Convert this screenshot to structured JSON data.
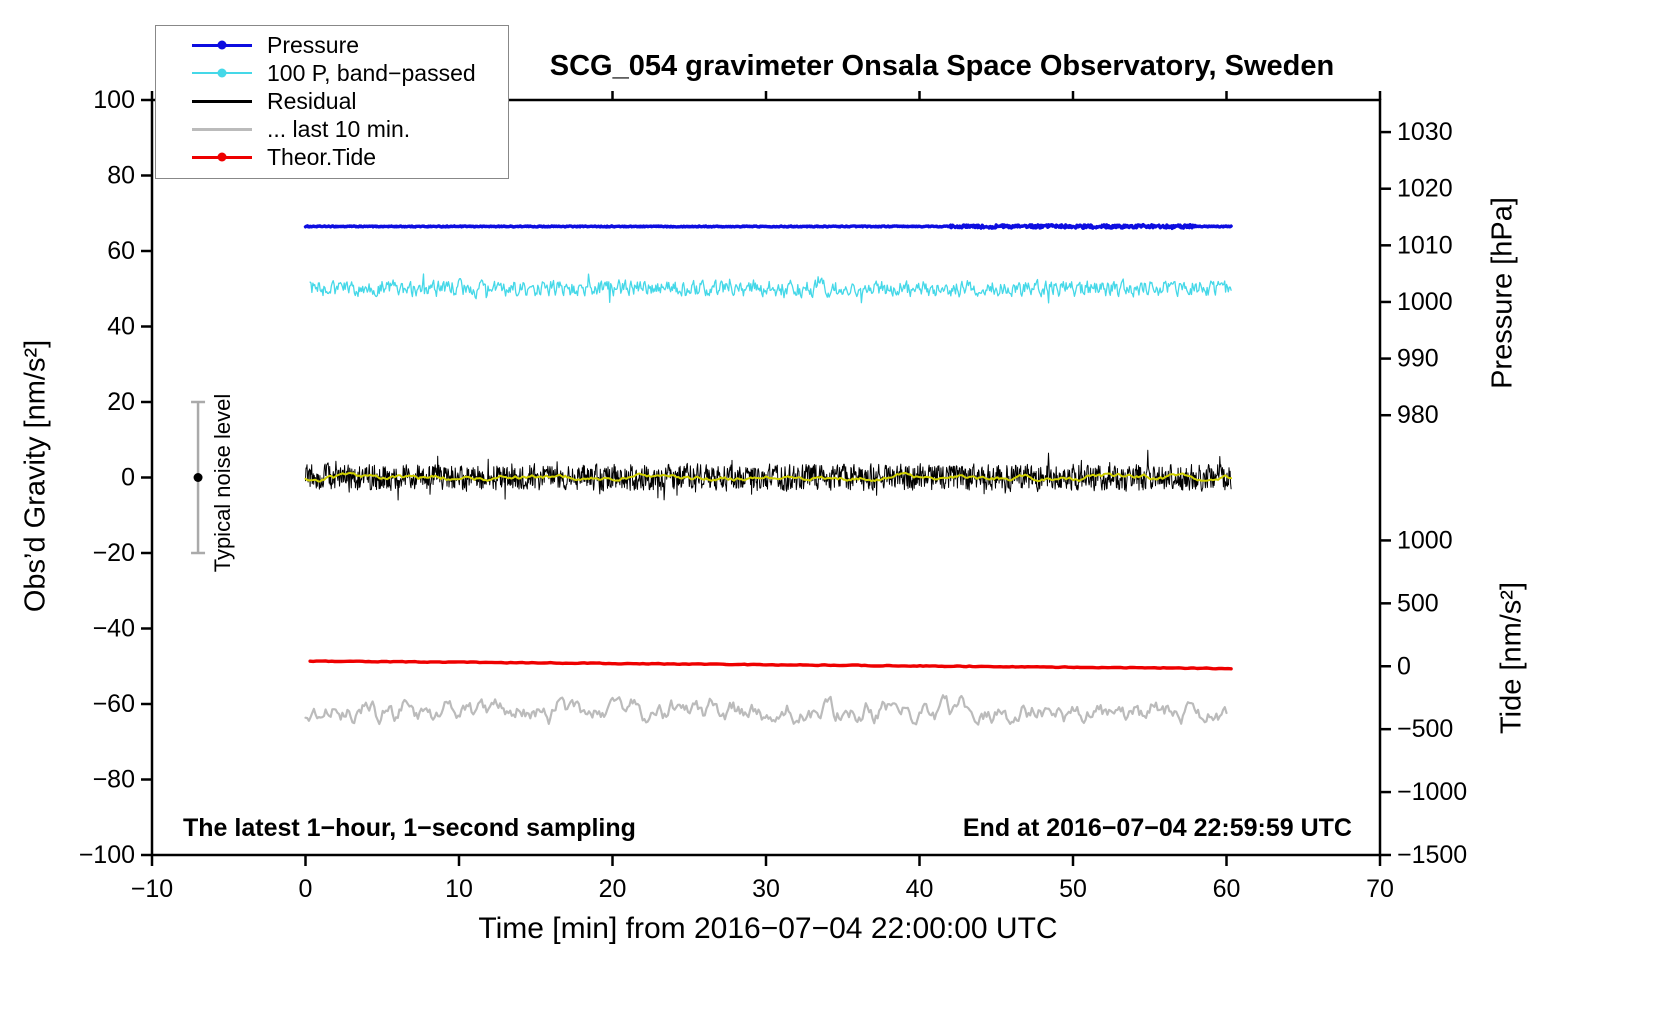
{
  "chart_data": {
    "type": "line",
    "title": "SCG_054 gravimeter Onsala Space Observatory, Sweden",
    "xlabel": "Time [min] from 2016−07−04 22:00:00 UTC",
    "ylabel_left": "Obs’d Gravity [nm/s²]",
    "xlim": [
      -10,
      70
    ],
    "ylim_left": [
      -100,
      100
    ],
    "x_ticks": [
      -10,
      0,
      10,
      20,
      30,
      40,
      50,
      60,
      70
    ],
    "y_ticks_left": [
      -100,
      -80,
      -60,
      -40,
      -20,
      0,
      20,
      40,
      60,
      80,
      100
    ],
    "grid": false,
    "legend_position": "top-left",
    "pressure_axis": {
      "label": "Pressure [hPa]",
      "ticks": [
        1030,
        1020,
        1010,
        1000,
        990,
        980
      ],
      "map": {
        "origin_value": 1030,
        "origin_g": 91.5,
        "g_per_unit": 1.5
      }
    },
    "tide_axis": {
      "label": "Tide [nm/s²]",
      "ticks": [
        1000,
        500,
        0,
        -500,
        -1000,
        -1500
      ],
      "map": {
        "origin_value": 0,
        "origin_g": -50,
        "g_per_unit": 0.03333
      }
    },
    "legend": [
      {
        "label": "Pressure",
        "color": "#0d0de0",
        "marker": true,
        "line_width": 3
      },
      {
        "label": "100 P, band−passed",
        "color": "#45d8e8",
        "marker": true,
        "line_width": 1.5
      },
      {
        "label": "Residual",
        "color": "#000000",
        "marker": false,
        "line_width": 3
      },
      {
        "label": "... last 10 min.",
        "color": "#bbbbbb",
        "marker": false,
        "line_width": 3
      },
      {
        "label": "Theor.Tide",
        "color": "#ee0000",
        "marker": true,
        "line_width": 3
      }
    ],
    "series": [
      {
        "id": "pressure",
        "name": "Pressure",
        "color": "#0d0de0",
        "width": 3.4,
        "baseline": 66.5,
        "amplitude": 0.1,
        "smooth": 0.3,
        "x0": 0,
        "x1": 60.3,
        "points": 1400,
        "fuzz": {
          "x0": 42,
          "x1": 58,
          "amplitude": 0.4
        },
        "approx_value_hpa": 1013.3
      },
      {
        "id": "pressure_bp",
        "name": "100 P, band−passed",
        "color": "#45d8e8",
        "width": 1.3,
        "baseline": 50,
        "amplitude": 1.7,
        "smooth": 0.4,
        "spike_prob": 0.02,
        "spike_mult": 2.0,
        "x0": 0.3,
        "x1": 60.3,
        "points": 1000
      },
      {
        "id": "residual",
        "name": "Residual",
        "color": "#000000",
        "width": 1,
        "baseline": 0,
        "amplitude": 2.8,
        "smooth": 0.15,
        "spike_prob": 0.05,
        "spike_mult": 1.6,
        "x0": 0,
        "x1": 60.3,
        "points": 1800
      },
      {
        "id": "residual_mean",
        "name": "Residual running mean",
        "color": "#d0d000",
        "width": 2,
        "baseline": 0,
        "amplitude": 0.8,
        "smooth": 0.9,
        "x0": 0,
        "x1": 60.3,
        "points": 500
      },
      {
        "id": "theor_tide",
        "name": "Theor.Tide",
        "color": "#ee0000",
        "width": 3.4,
        "trend": [
          -48.6,
          -50.6
        ],
        "amplitude": 0.08,
        "smooth": 0.3,
        "x0": 0.3,
        "x1": 60.3,
        "points": 300
      },
      {
        "id": "last10",
        "name": "... last 10 min.",
        "color": "#bbbbbb",
        "width": 2.2,
        "baseline": -62,
        "amplitude": 2.2,
        "smooth": 0.75,
        "sin_amp": 0.9,
        "sin_freq": 0.55,
        "x0": 0,
        "x1": 60,
        "points": 550
      }
    ],
    "noise_bar": {
      "label": "Typical noise level",
      "x": -7,
      "center": 0,
      "half_range": 20
    },
    "annotations": {
      "bottom_left": "The latest 1−hour, 1−second sampling",
      "bottom_right": "End at 2016−07−04 22:59:59 UTC"
    }
  }
}
